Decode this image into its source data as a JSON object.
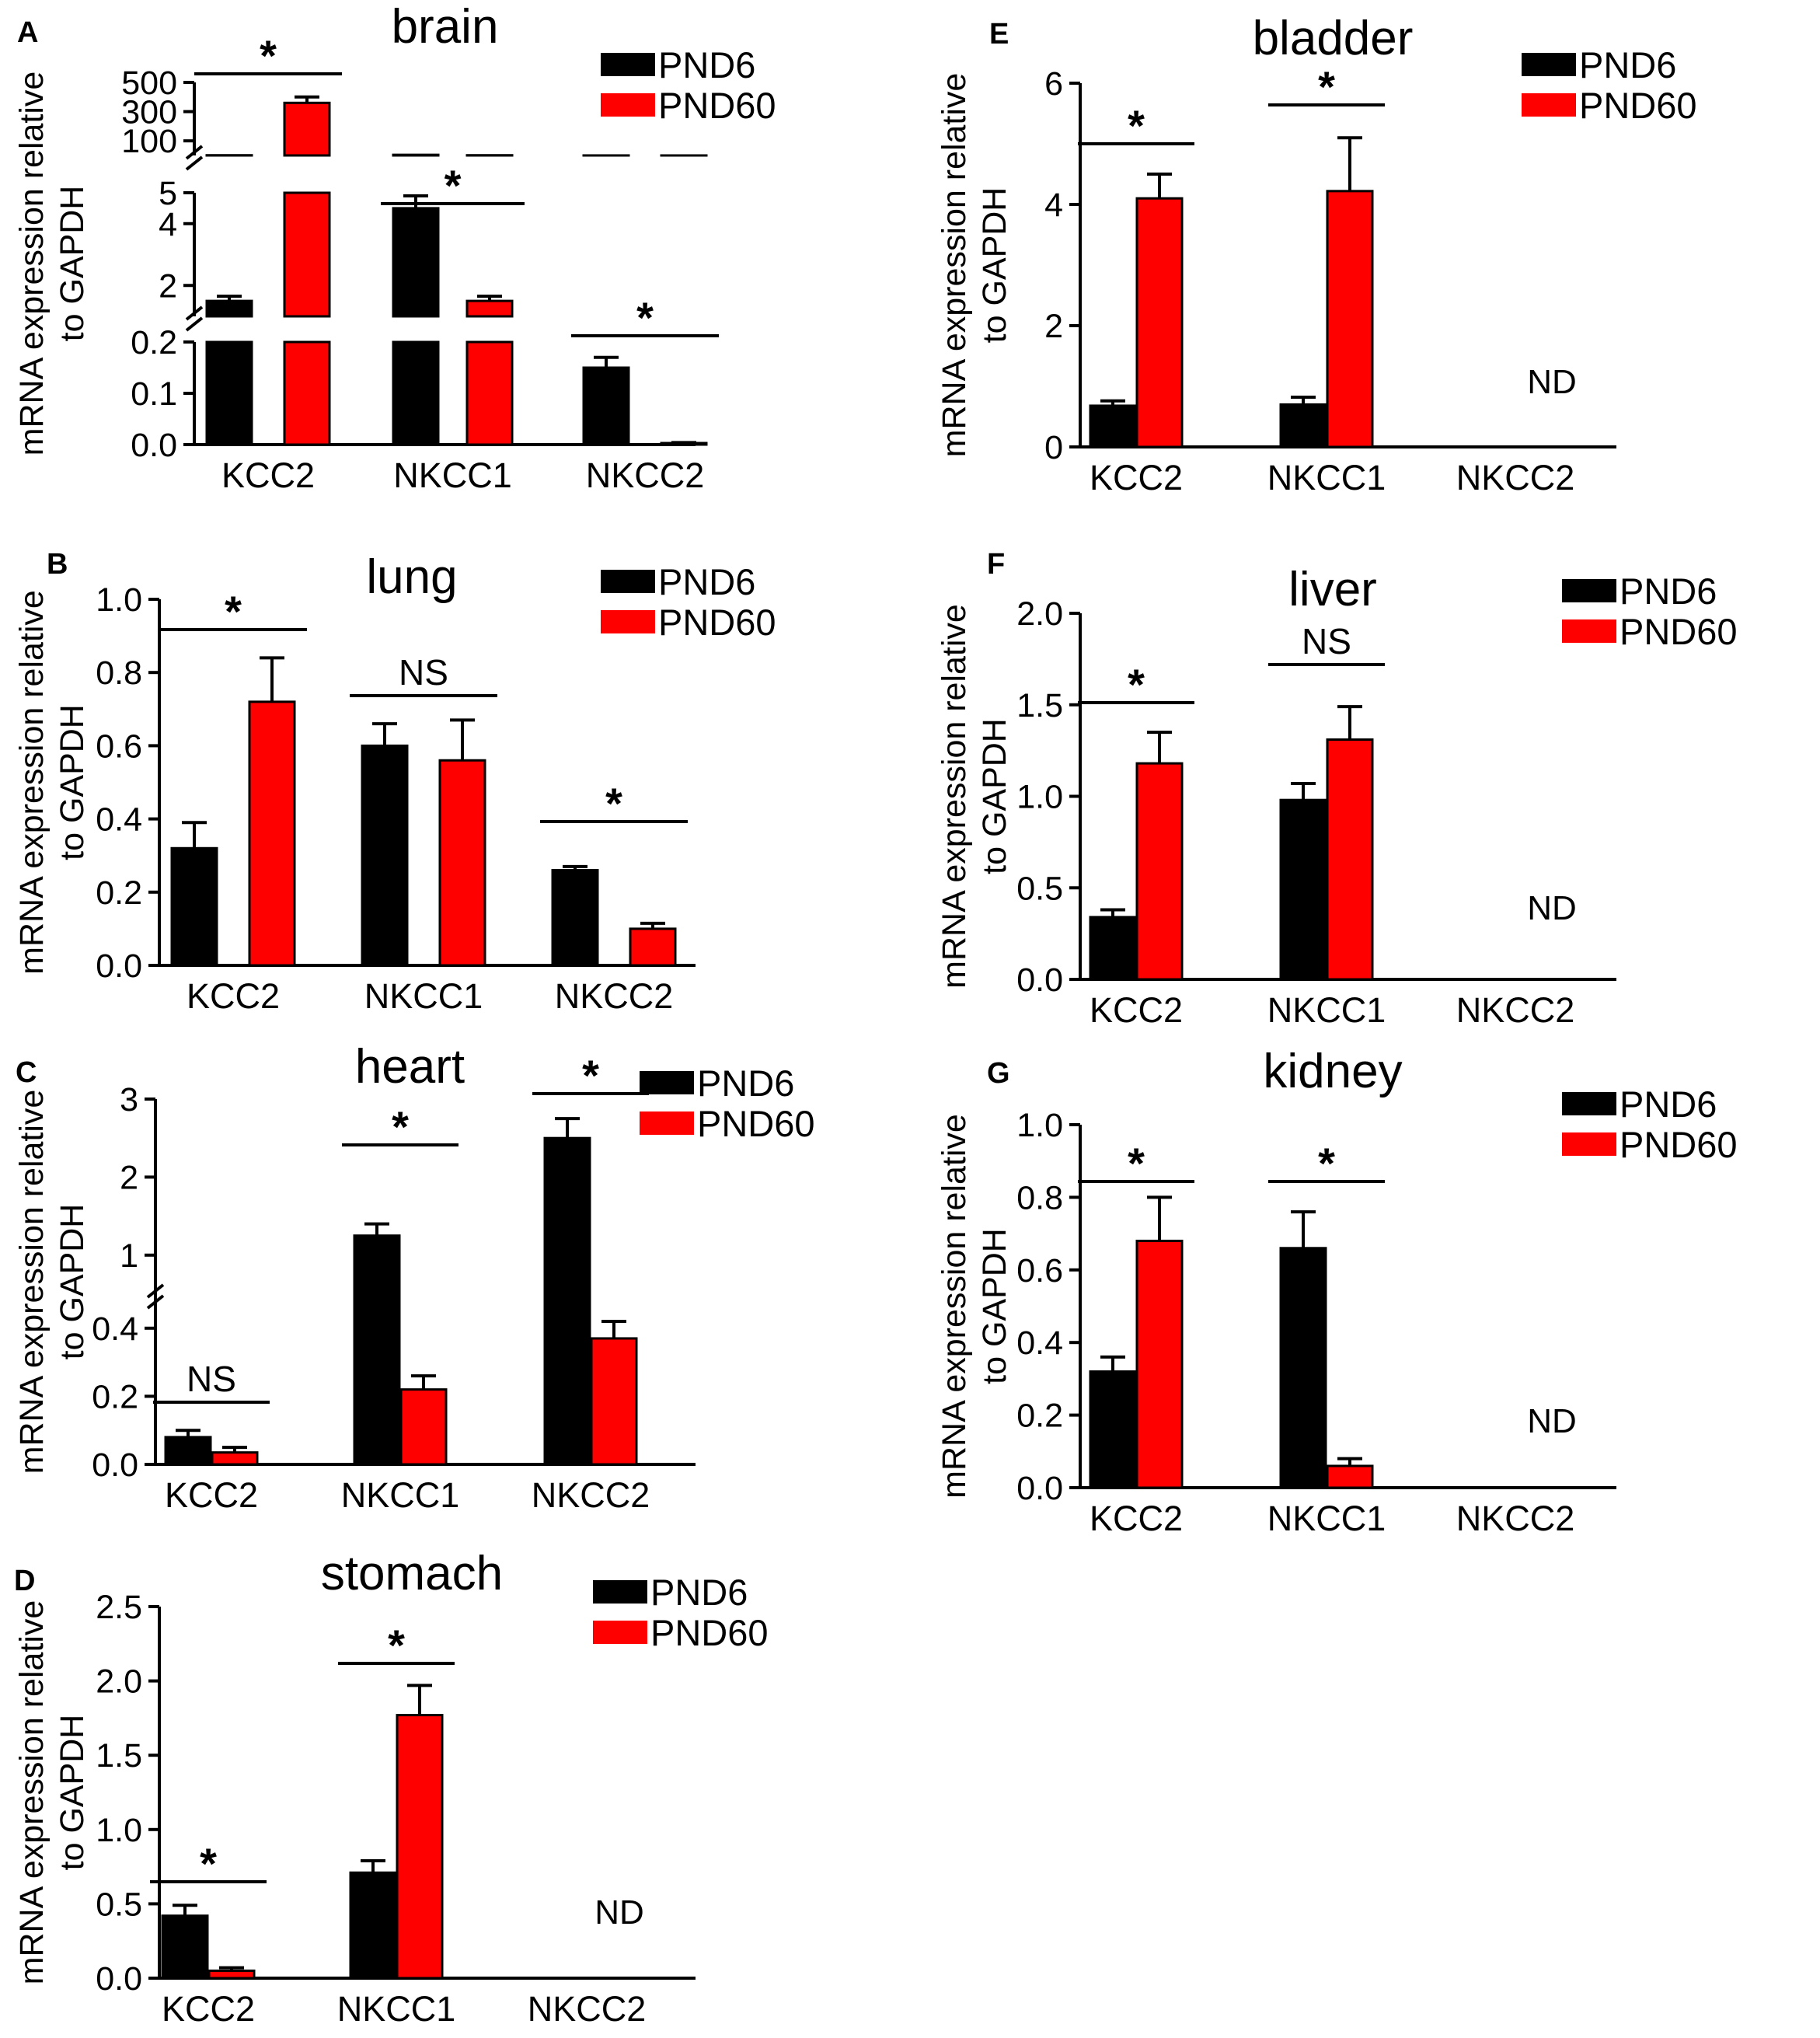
{
  "figure": {
    "ylabel_line1": "mRNA expression relative",
    "ylabel_line2": "to GAPDH"
  },
  "legend": {
    "pnd6": "PND6",
    "pnd60": "PND60"
  },
  "colors": {
    "pnd6": "#000000",
    "pnd60": "#ff0000",
    "axis": "#000000"
  },
  "chart_data": [
    {
      "id": "A",
      "title": "brain",
      "type": "bar",
      "categories": [
        "KCC2",
        "NKCC1",
        "NKCC2"
      ],
      "series": [
        {
          "name": "PND6",
          "values": [
            1.5,
            4.5,
            0.15
          ],
          "errors": [
            0.15,
            0.4,
            0.02
          ]
        },
        {
          "name": "PND60",
          "values": [
            360,
            1.5,
            0.003
          ],
          "errors": [
            40,
            0.15,
            0.001
          ]
        }
      ],
      "ylim": [
        0,
        500
      ],
      "axis_break": true,
      "y_segments": [
        {
          "min": 0,
          "max": 0.2,
          "ticks": [
            0.0,
            0.1,
            0.2
          ],
          "labels": [
            "0.0",
            "0.1",
            "0.2"
          ]
        },
        {
          "min": 1,
          "max": 5,
          "ticks": [
            2,
            4,
            5
          ],
          "labels": [
            "2",
            "4",
            "5"
          ]
        },
        {
          "min": 0,
          "max": 500,
          "ticks": [
            100,
            300,
            500
          ],
          "labels": [
            "100",
            "300",
            "500"
          ]
        }
      ],
      "significance": [
        "*",
        "*",
        "*"
      ],
      "not_detected": [],
      "nd_label": ""
    },
    {
      "id": "B",
      "title": "lung",
      "type": "bar",
      "categories": [
        "KCC2",
        "NKCC1",
        "NKCC2"
      ],
      "series": [
        {
          "name": "PND6",
          "values": [
            0.32,
            0.6,
            0.26
          ],
          "errors": [
            0.07,
            0.06,
            0.01
          ]
        },
        {
          "name": "PND60",
          "values": [
            0.72,
            0.56,
            0.1
          ],
          "errors": [
            0.12,
            0.11,
            0.015
          ]
        }
      ],
      "ylim": [
        0,
        1.0
      ],
      "yticks": [
        0.0,
        0.2,
        0.4,
        0.6,
        0.8,
        1.0
      ],
      "ytick_labels": [
        "0.0",
        "0.2",
        "0.4",
        "0.6",
        "0.8",
        "1.0"
      ],
      "significance": [
        "*",
        "NS",
        "*"
      ],
      "not_detected": [],
      "nd_label": ""
    },
    {
      "id": "C",
      "title": "heart",
      "type": "bar",
      "categories": [
        "KCC2",
        "NKCC1",
        "NKCC2"
      ],
      "series": [
        {
          "name": "PND6",
          "values": [
            0.08,
            1.25,
            2.5
          ],
          "errors": [
            0.02,
            0.15,
            0.25
          ]
        },
        {
          "name": "PND60",
          "values": [
            0.035,
            0.22,
            0.37
          ],
          "errors": [
            0.015,
            0.04,
            0.05
          ]
        }
      ],
      "ylim": [
        0,
        3
      ],
      "axis_break": true,
      "y_segments": [
        {
          "min": 0,
          "max": 0.5,
          "ticks": [
            0.0,
            0.2,
            0.4
          ],
          "labels": [
            "0.0",
            "0.2",
            "0.4"
          ]
        },
        {
          "min": 0.5,
          "max": 3,
          "ticks": [
            1,
            2,
            3
          ],
          "labels": [
            "1",
            "2",
            "3"
          ]
        }
      ],
      "significance": [
        "NS",
        "*",
        "*"
      ],
      "not_detected": [],
      "nd_label": ""
    },
    {
      "id": "D",
      "title": "stomach",
      "type": "bar",
      "categories": [
        "KCC2",
        "NKCC1",
        "NKCC2"
      ],
      "series": [
        {
          "name": "PND6",
          "values": [
            0.42,
            0.71,
            null
          ],
          "errors": [
            0.07,
            0.08,
            null
          ]
        },
        {
          "name": "PND60",
          "values": [
            0.05,
            1.77,
            null
          ],
          "errors": [
            0.02,
            0.2,
            null
          ]
        }
      ],
      "ylim": [
        0,
        2.5
      ],
      "yticks": [
        0.0,
        0.5,
        1.0,
        1.5,
        2.0,
        2.5
      ],
      "ytick_labels": [
        "0.0",
        "0.5",
        "1.0",
        "1.5",
        "2.0",
        "2.5"
      ],
      "significance": [
        "*",
        "*",
        null
      ],
      "not_detected": [
        "NKCC2"
      ],
      "nd_label": "ND"
    },
    {
      "id": "E",
      "title": "bladder",
      "type": "bar",
      "categories": [
        "KCC2",
        "NKCC1",
        "NKCC2"
      ],
      "series": [
        {
          "name": "PND6",
          "values": [
            0.68,
            0.7,
            null
          ],
          "errors": [
            0.08,
            0.12,
            null
          ]
        },
        {
          "name": "PND60",
          "values": [
            4.1,
            4.22,
            null
          ],
          "errors": [
            0.4,
            0.88,
            null
          ]
        }
      ],
      "ylim": [
        0,
        6
      ],
      "yticks": [
        0,
        2,
        4,
        6
      ],
      "ytick_labels": [
        "0",
        "2",
        "4",
        "6"
      ],
      "significance": [
        "*",
        "*",
        null
      ],
      "not_detected": [
        "NKCC2"
      ],
      "nd_label": "ND"
    },
    {
      "id": "F",
      "title": "liver",
      "type": "bar",
      "categories": [
        "KCC2",
        "NKCC1",
        "NKCC2"
      ],
      "series": [
        {
          "name": "PND6",
          "values": [
            0.34,
            0.98,
            null
          ],
          "errors": [
            0.04,
            0.09,
            null
          ]
        },
        {
          "name": "PND60",
          "values": [
            1.18,
            1.31,
            null
          ],
          "errors": [
            0.17,
            0.18,
            null
          ]
        }
      ],
      "ylim": [
        0,
        2.0
      ],
      "yticks": [
        0.0,
        0.5,
        1.0,
        1.5,
        2.0
      ],
      "ytick_labels": [
        "0.0",
        "0.5",
        "1.0",
        "1.5",
        "2.0"
      ],
      "significance": [
        "*",
        "NS",
        null
      ],
      "not_detected": [
        "NKCC2"
      ],
      "nd_label": "ND"
    },
    {
      "id": "G",
      "title": "kidney",
      "type": "bar",
      "categories": [
        "KCC2",
        "NKCC1",
        "NKCC2"
      ],
      "series": [
        {
          "name": "PND6",
          "values": [
            0.32,
            0.66,
            null
          ],
          "errors": [
            0.04,
            0.1,
            null
          ]
        },
        {
          "name": "PND60",
          "values": [
            0.68,
            0.06,
            null
          ],
          "errors": [
            0.12,
            0.02,
            null
          ]
        }
      ],
      "ylim": [
        0,
        1.0
      ],
      "yticks": [
        0.0,
        0.2,
        0.4,
        0.6,
        0.8,
        1.0
      ],
      "ytick_labels": [
        "0.0",
        "0.2",
        "0.4",
        "0.6",
        "0.8",
        "1.0"
      ],
      "significance": [
        "*",
        "*",
        null
      ],
      "not_detected": [
        "NKCC2"
      ],
      "nd_label": "ND"
    }
  ]
}
